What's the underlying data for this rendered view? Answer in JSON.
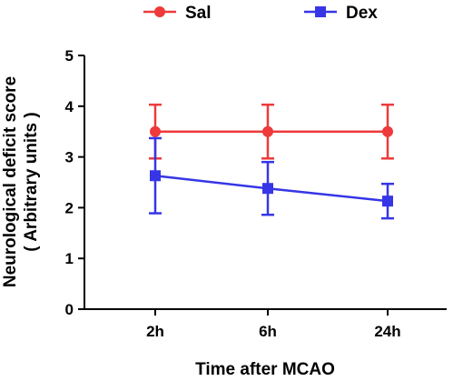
{
  "chart_data": {
    "type": "line",
    "categories": [
      "2h",
      "6h",
      "24h"
    ],
    "series": [
      {
        "name": "Sal",
        "color": "#ee3a3a",
        "marker": "circle",
        "values": [
          3.5,
          3.5,
          3.5
        ],
        "error_high": [
          4.03,
          4.03,
          4.03
        ],
        "error_low": [
          2.97,
          2.97,
          2.97
        ]
      },
      {
        "name": "Dex",
        "color": "#3636e6",
        "marker": "square",
        "values": [
          2.63,
          2.38,
          2.13
        ],
        "error_high": [
          3.37,
          2.9,
          2.47
        ],
        "error_low": [
          1.89,
          1.86,
          1.79
        ]
      }
    ],
    "title": "",
    "xlabel": "Time after MCAO",
    "ylabel_line1": "Neurological deficit score",
    "ylabel_line2": "( Arbitrary units )",
    "ylim": [
      0,
      5
    ],
    "yticks": [
      "0",
      "1",
      "2",
      "3",
      "4",
      "5"
    ],
    "grid": false,
    "legend": "top"
  }
}
